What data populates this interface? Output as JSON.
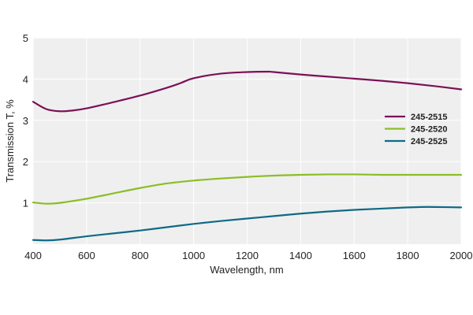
{
  "chart_data": {
    "type": "line",
    "title": "",
    "xlabel": "Wavelength, nm",
    "ylabel": "Transmission T, %",
    "xlim": [
      400,
      2000
    ],
    "ylim": [
      0,
      5
    ],
    "x_ticks": [
      400,
      600,
      800,
      1000,
      1200,
      1400,
      1600,
      1800,
      2000
    ],
    "y_ticks": [
      1,
      2,
      3,
      4,
      5
    ],
    "grid": true,
    "legend_position": "right",
    "plot_background": "#efefef",
    "grid_color": "#ffffff",
    "series": [
      {
        "name": "245-2515",
        "color": "#7b1157",
        "points": [
          [
            400,
            3.45
          ],
          [
            450,
            3.27
          ],
          [
            500,
            3.22
          ],
          [
            550,
            3.24
          ],
          [
            600,
            3.29
          ],
          [
            700,
            3.44
          ],
          [
            800,
            3.6
          ],
          [
            900,
            3.79
          ],
          [
            950,
            3.9
          ],
          [
            1000,
            4.02
          ],
          [
            1100,
            4.13
          ],
          [
            1200,
            4.17
          ],
          [
            1275,
            4.18
          ],
          [
            1300,
            4.17
          ],
          [
            1400,
            4.11
          ],
          [
            1500,
            4.06
          ],
          [
            1600,
            4.01
          ],
          [
            1700,
            3.96
          ],
          [
            1800,
            3.9
          ],
          [
            1900,
            3.83
          ],
          [
            2000,
            3.75
          ]
        ]
      },
      {
        "name": "245-2520",
        "color": "#8cbd27",
        "points": [
          [
            400,
            1.01
          ],
          [
            450,
            0.98
          ],
          [
            500,
            1.0
          ],
          [
            600,
            1.1
          ],
          [
            700,
            1.23
          ],
          [
            800,
            1.36
          ],
          [
            900,
            1.47
          ],
          [
            1000,
            1.54
          ],
          [
            1100,
            1.59
          ],
          [
            1200,
            1.63
          ],
          [
            1300,
            1.66
          ],
          [
            1400,
            1.68
          ],
          [
            1500,
            1.69
          ],
          [
            1600,
            1.69
          ],
          [
            1700,
            1.68
          ],
          [
            1800,
            1.68
          ],
          [
            1900,
            1.68
          ],
          [
            2000,
            1.68
          ]
        ]
      },
      {
        "name": "245-2525",
        "color": "#0f6a86",
        "points": [
          [
            400,
            0.1
          ],
          [
            450,
            0.09
          ],
          [
            500,
            0.11
          ],
          [
            600,
            0.19
          ],
          [
            700,
            0.26
          ],
          [
            800,
            0.33
          ],
          [
            900,
            0.41
          ],
          [
            1000,
            0.49
          ],
          [
            1100,
            0.56
          ],
          [
            1200,
            0.62
          ],
          [
            1300,
            0.68
          ],
          [
            1400,
            0.74
          ],
          [
            1500,
            0.79
          ],
          [
            1600,
            0.83
          ],
          [
            1700,
            0.86
          ],
          [
            1800,
            0.89
          ],
          [
            1850,
            0.9
          ],
          [
            1900,
            0.9
          ],
          [
            2000,
            0.89
          ]
        ]
      }
    ]
  }
}
